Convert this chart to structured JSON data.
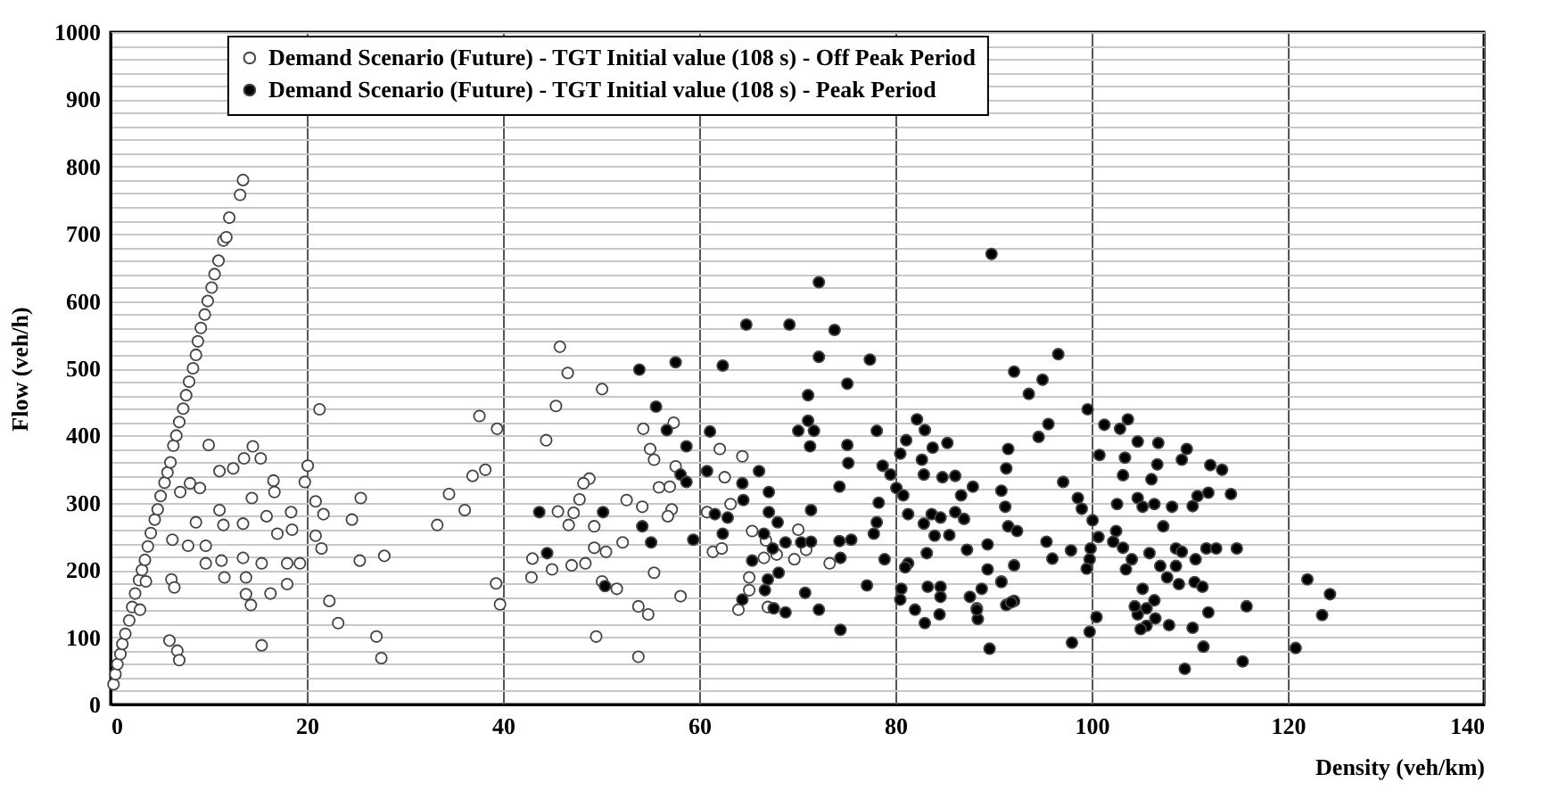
{
  "chart_data": {
    "type": "scatter",
    "xlabel": "Density (veh/km)",
    "ylabel": "Flow (veh/h)",
    "xlim": [
      0,
      140
    ],
    "ylim": [
      0,
      1000
    ],
    "xticks": [
      0,
      20,
      40,
      60,
      80,
      100,
      120,
      140
    ],
    "yticks": [
      0,
      {
        "value": 20,
        "label": null
      },
      {
        "value": 40,
        "label": null
      },
      {
        "value": 60,
        "label": null
      },
      {
        "value": 80,
        "label": null
      },
      100,
      {
        "value": 120,
        "label": null
      },
      {
        "value": 140,
        "label": null
      },
      {
        "value": 160,
        "label": null
      },
      {
        "value": 180,
        "label": null
      },
      200,
      {
        "value": 220,
        "label": null
      },
      {
        "value": 240,
        "label": null
      },
      {
        "value": 260,
        "label": null
      },
      {
        "value": 280,
        "label": null
      },
      300,
      {
        "value": 320,
        "label": null
      },
      {
        "value": 340,
        "label": null
      },
      {
        "value": 360,
        "label": null
      },
      {
        "value": 380,
        "label": null
      },
      400,
      {
        "value": 420,
        "label": null
      },
      {
        "value": 440,
        "label": null
      },
      {
        "value": 460,
        "label": null
      },
      {
        "value": 480,
        "label": null
      },
      500,
      {
        "value": 520,
        "label": null
      },
      {
        "value": 540,
        "label": null
      },
      {
        "value": 560,
        "label": null
      },
      {
        "value": 580,
        "label": null
      },
      600,
      {
        "value": 620,
        "label": null
      },
      {
        "value": 640,
        "label": null
      },
      {
        "value": 660,
        "label": null
      },
      {
        "value": 680,
        "label": null
      },
      700,
      {
        "value": 720,
        "label": null
      },
      {
        "value": 740,
        "label": null
      },
      {
        "value": 760,
        "label": null
      },
      {
        "value": 780,
        "label": null
      },
      800,
      {
        "value": 820,
        "label": null
      },
      {
        "value": 840,
        "label": null
      },
      {
        "value": 860,
        "label": null
      },
      {
        "value": 880,
        "label": null
      },
      900,
      {
        "value": 920,
        "label": null
      },
      {
        "value": 940,
        "label": null
      },
      {
        "value": 960,
        "label": null
      },
      {
        "value": 980,
        "label": null
      },
      1000
    ],
    "grid": true,
    "legend": "top",
    "marker": "circle",
    "series": [
      {
        "name": "Demand Scenario (Future) - TGT Initial value (108 s) - Off Peak Period",
        "color": "#ffffff",
        "x": [
          0.3,
          0.5,
          0.7,
          1,
          1.2,
          1.5,
          1.9,
          2.2,
          2.5,
          2.9,
          3.2,
          3.5,
          3.8,
          4.1,
          4.5,
          4.8,
          5.1,
          5.5,
          5.8,
          6.1,
          6.4,
          6.7,
          7,
          7.4,
          7.7,
          8,
          8.4,
          8.7,
          8.9,
          9.2,
          9.6,
          9.9,
          10.3,
          10.6,
          11,
          11.5,
          11.8,
          12.1,
          13.2,
          13.5,
          10.0,
          11.1,
          12.5,
          13.6,
          14.5,
          15.3,
          16.6,
          16.7,
          14.4,
          11.1,
          11.5,
          13.5,
          8.7,
          7.9,
          9.7,
          9.7,
          11.3,
          11.6,
          13.5,
          13.8,
          15.4,
          15.9,
          17.0,
          18.5,
          18.4,
          18.0,
          19.3,
          20.1,
          19.8,
          20.9,
          21.7,
          21.5,
          21.3,
          20.9,
          22.3,
          23.2,
          24.6,
          25.5,
          25.4,
          27.1,
          27.6,
          27.9,
          16.3,
          15.4,
          14.3,
          13.8,
          18.0,
          6.0,
          6.8,
          7.0,
          6.2,
          6.5,
          3.0,
          6.3,
          3.6,
          8.1,
          9.1,
          7.1,
          33.3,
          34.5,
          36.1,
          36.9,
          38.2,
          37.6,
          39.4,
          39.3,
          39.7,
          42.9,
          43.0,
          45.0,
          44.4,
          45.4,
          45.8,
          46.6,
          45.6,
          46.7,
          49.5,
          50.1,
          54.3,
          57.4,
          55.0,
          55.4,
          57.6,
          48.8,
          48.2,
          47.8,
          52.6,
          54.2,
          55.9,
          57.0,
          57.2,
          56.8,
          47.2,
          49.3,
          52.2,
          49.3,
          50.5,
          47.0,
          48.4,
          50.1,
          51.6,
          55.4,
          53.8,
          54.8,
          58.1,
          53.8,
          62.1,
          62.6,
          64.4,
          63.2,
          60.8,
          65.4,
          66.8,
          61.4,
          62.3,
          66.6,
          67.9,
          69.7,
          70.1,
          70.9,
          65.1,
          65.1,
          64.0,
          67.0,
          73.3
        ],
        "values": [
          30,
          45,
          60,
          75,
          90,
          105,
          125,
          145,
          165,
          185,
          200,
          215,
          235,
          255,
          275,
          290,
          310,
          330,
          345,
          360,
          385,
          400,
          420,
          440,
          460,
          480,
          500,
          520,
          540,
          560,
          580,
          600,
          620,
          640,
          660,
          690,
          695,
          724,
          758,
          780,
          386,
          347,
          351,
          366,
          384,
          366,
          333,
          316,
          307,
          289,
          267,
          269,
          271,
          236,
          236,
          210,
          214,
          189,
          218,
          189,
          210,
          280,
          254,
          260,
          286,
          210,
          210,
          355,
          331,
          302,
          283,
          232,
          439,
          251,
          154,
          121,
          275,
          307,
          214,
          101,
          69,
          221,
          165,
          88,
          148,
          164,
          179,
          95,
          80,
          66,
          186,
          174,
          141,
          245,
          183,
          329,
          322,
          316,
          267,
          313,
          289,
          340,
          349,
          429,
          410,
          180,
          149,
          189,
          217,
          201,
          393,
          444,
          532,
          493,
          287,
          267,
          101,
          469,
          410,
          419,
          380,
          364,
          354,
          336,
          329,
          305,
          304,
          294,
          323,
          324,
          290,
          280,
          285,
          265,
          241,
          233,
          227,
          207,
          210,
          183,
          172,
          196,
          146,
          134,
          161,
          71,
          380,
          338,
          369,
          298,
          286,
          258,
          244,
          227,
          232,
          218,
          223,
          216,
          260,
          230,
          189,
          170,
          141,
          145,
          210
        ]
      },
      {
        "name": "Demand Scenario (Future) - TGT Initial value (108 s) - Peak Period",
        "color": "#000000",
        "x": [
          72.2,
          64.8,
          69.2,
          73.8,
          72.2,
          77.4,
          57.6,
          53.9,
          62.4,
          75.1,
          71.1,
          55.6,
          71.1,
          70.1,
          71.7,
          56.7,
          61.1,
          78.1,
          58.7,
          71.3,
          75.1,
          75.2,
          78.7,
          60.8,
          66.1,
          58.1,
          58.7,
          64.4,
          74.3,
          67.1,
          64.5,
          78.3,
          43.7,
          50.2,
          61.6,
          62.9,
          67.1,
          71.4,
          68.0,
          78.1,
          54.2,
          62.4,
          66.6,
          77.8,
          59.4,
          55.1,
          68.8,
          70.4,
          71.4,
          74.3,
          75.5,
          67.5,
          44.5,
          74.4,
          65.4,
          78.9,
          68.1,
          67.0,
          50.4,
          77.1,
          66.7,
          70.8,
          64.4,
          67.6,
          68.8,
          72.2,
          74.4,
          82.2,
          83.0,
          81.1,
          83.8,
          85.3,
          80.5,
          82.7,
          79.5,
          82.9,
          84.8,
          86.1,
          87.9,
          80.1,
          80.8,
          86.7,
          81.3,
          83.7,
          84.6,
          86.1,
          87.0,
          82.9,
          84.0,
          85.5,
          89.4,
          87.3,
          83.2,
          81.3,
          81.0,
          89.4,
          90.8,
          80.6,
          83.3,
          84.6,
          84.6,
          80.5,
          82.0,
          84.5,
          87.6,
          88.8,
          88.3,
          88.4,
          83.0,
          89.6,
          92.1,
          91.5,
          91.3,
          90.8,
          91.2,
          91.5,
          92.4,
          92.1,
          91.3,
          92.1,
          89.8,
          96.6,
          95.0,
          93.6,
          95.6,
          94.6,
          99.6,
          101.3,
          102.9,
          103.7,
          104.7,
          106.8,
          109.7,
          109.2,
          112.1,
          113.3,
          100.8,
          103.4,
          106.7,
          103.2,
          106.1,
          97.1,
          98.6,
          99.0,
          100.1,
          102.6,
          104.7,
          105.2,
          106.4,
          108.2,
          110.3,
          110.8,
          111.9,
          114.2,
          107.3,
          102.5,
          100.7,
          102.2,
          103.2,
          105.9,
          108.6,
          109.2,
          111.7,
          112.7,
          114.8,
          95.4,
          97.9,
          99.9,
          96.0,
          99.8,
          99.5,
          104.1,
          103.5,
          107.0,
          108.6,
          110.6,
          107.7,
          108.9,
          110.5,
          111.3,
          122.0,
          124.3,
          123.5,
          120.8,
          115.8,
          115.4,
          111.9,
          111.4,
          109.5,
          110.3,
          107.9,
          106.5,
          105.6,
          105.0,
          104.7,
          105.6,
          106.4,
          104.4,
          105.2,
          100.5,
          99.8,
          98.0,
          91.8,
          88.3,
          90.8
        ],
        "values": [
          628,
          565,
          565,
          557,
          517,
          513,
          509,
          498,
          504,
          477,
          460,
          443,
          422,
          407,
          407,
          408,
          406,
          407,
          384,
          384,
          386,
          359,
          355,
          347,
          347,
          342,
          331,
          329,
          324,
          316,
          304,
          300,
          286,
          286,
          283,
          278,
          286,
          289,
          271,
          271,
          265,
          254,
          254,
          254,
          245,
          241,
          241,
          241,
          242,
          243,
          245,
          232,
          225,
          218,
          214,
          216,
          196,
          186,
          176,
          177,
          170,
          166,
          156,
          143,
          137,
          141,
          111,
          424,
          408,
          393,
          382,
          389,
          373,
          364,
          342,
          342,
          338,
          340,
          324,
          322,
          311,
          311,
          283,
          283,
          278,
          286,
          276,
          269,
          251,
          252,
          238,
          230,
          225,
          210,
          204,
          201,
          183,
          172,
          175,
          175,
          160,
          156,
          141,
          134,
          160,
          172,
          143,
          127,
          121,
          83,
          495,
          380,
          351,
          318,
          294,
          265,
          258,
          207,
          148,
          154,
          670,
          521,
          483,
          462,
          417,
          398,
          439,
          416,
          410,
          424,
          391,
          389,
          380,
          364,
          356,
          349,
          371,
          367,
          357,
          341,
          335,
          331,
          307,
          291,
          274,
          298,
          307,
          294,
          298,
          294,
          295,
          310,
          315,
          313,
          265,
          258,
          249,
          242,
          233,
          225,
          232,
          227,
          232,
          232,
          232,
          242,
          229,
          232,
          217,
          216,
          202,
          216,
          201,
          206,
          206,
          216,
          189,
          179,
          182,
          175,
          186,
          164,
          133,
          84,
          146,
          64,
          137,
          86,
          53,
          114,
          118,
          128,
          117,
          112,
          134,
          143,
          155,
          146,
          172,
          130,
          108,
          92,
          152,
          141,
          182
        ]
      }
    ]
  }
}
